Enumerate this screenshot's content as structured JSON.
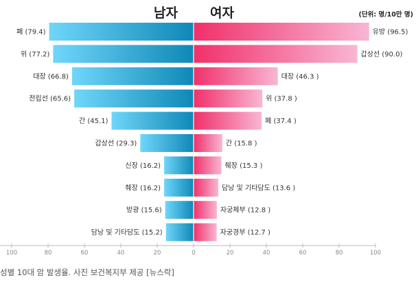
{
  "header": {
    "male_label": "남자",
    "female_label": "여자",
    "unit": "(단위: 명/10만 명)"
  },
  "caption": "성별 10대 암 발생율. 사진 보건복지부 제공 [뉴스락]",
  "colors": {
    "male_light": "#70d6fa",
    "male_dark": "#0f88b7",
    "female_dark": "#f0306a",
    "female_light": "#f9b6d4",
    "axis": "#888888"
  },
  "chart_data": {
    "type": "bar",
    "orientation": "horizontal-diverging",
    "title": "",
    "xlim": [
      -100,
      100
    ],
    "x_ticks": [
      "100",
      "80",
      "60",
      "40",
      "20",
      "0",
      "20",
      "40",
      "60",
      "80",
      "100"
    ],
    "grid": false,
    "series": [
      {
        "name": "남자",
        "side": "left",
        "categories": [
          "폐",
          "위",
          "대장",
          "전립선",
          "간",
          "갑상선",
          "신장",
          "췌장",
          "방광",
          "담낭 및 기타담도"
        ],
        "values": [
          79.4,
          77.2,
          66.8,
          65.6,
          45.1,
          29.3,
          16.2,
          16.2,
          15.6,
          15.2
        ],
        "labels": [
          "폐 (79.4)",
          "위 (77.2)",
          "대장 (66.8)",
          "전립선 (65.6)",
          "간 (45.1)",
          "갑상선 (29.3)",
          "신장 (16.2)",
          "췌장 (16.2)",
          "방광 (15.6)",
          "담낭 및 기타담도 (15.2)"
        ]
      },
      {
        "name": "여자",
        "side": "right",
        "categories": [
          "유방",
          "갑상선",
          "대장",
          "위",
          "폐",
          "간",
          "췌장",
          "담낭 및 기타담도",
          "자궁체부",
          "자궁경부"
        ],
        "values": [
          96.5,
          90.0,
          46.3,
          37.8,
          37.4,
          15.8,
          15.3,
          13.6,
          12.8,
          12.7
        ],
        "labels": [
          "유방 (96.5)",
          "갑상선 (90.0)",
          "대장 (46.3 )",
          "위 (37.8 )",
          "폐 (37.4 )",
          "간 (15.8 )",
          "췌장 (15.3 )",
          "담낭 및 기타담도 (13.6 )",
          "자궁체부 (12.8 )",
          "자궁경부 (12.7 )"
        ]
      }
    ]
  }
}
